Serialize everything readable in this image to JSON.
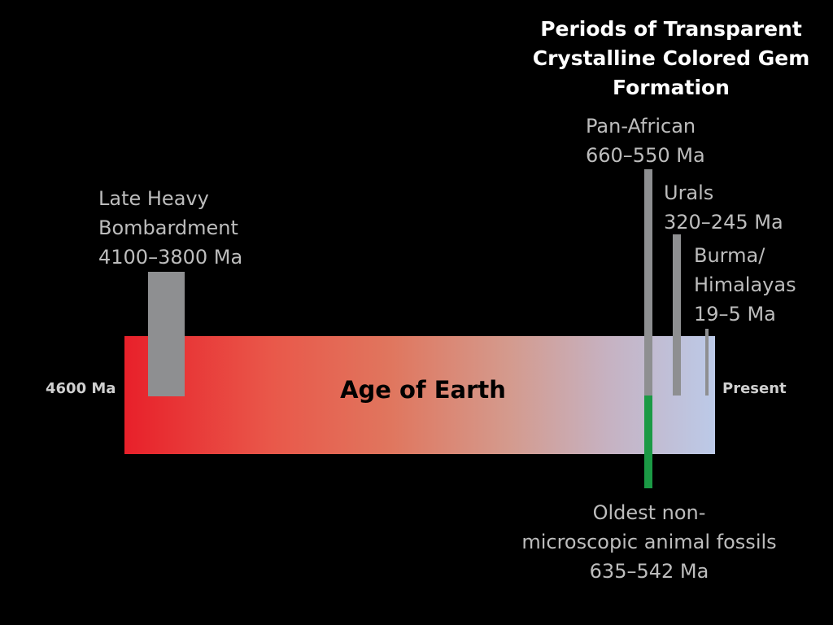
{
  "title": {
    "line1": "Periods of Transparent",
    "line2": "Crystalline Colored Gem",
    "line3": "Formation"
  },
  "timeline": {
    "bar_label": "Age of Earth",
    "start_label": "4600 Ma",
    "end_label": "Present",
    "start_ma": 4600,
    "end_ma": 0
  },
  "events": {
    "late_heavy_bombardment": {
      "line1": "Late Heavy",
      "line2": "Bombardment",
      "range": "4100–3800 Ma",
      "start_ma": 4100,
      "end_ma": 3800
    },
    "pan_african": {
      "line1": "Pan-African",
      "range": "660–550 Ma",
      "start_ma": 660,
      "end_ma": 550
    },
    "urals": {
      "line1": "Urals",
      "range": "320–245 Ma",
      "start_ma": 320,
      "end_ma": 245
    },
    "burma_himalayas": {
      "line1": "Burma/",
      "line2": "Himalayas",
      "range": "19–5 Ma",
      "start_ma": 19,
      "end_ma": 5
    },
    "oldest_fossils": {
      "line1": "Oldest non-",
      "line2": "microscopic animal fossils",
      "range": "635–542 Ma",
      "start_ma": 635,
      "end_ma": 542
    }
  },
  "colors": {
    "background": "#000000",
    "gem_period_bar": "#8e8f91",
    "fossil_bar": "#1b9a45",
    "gradient_start": "#e8202a",
    "gradient_end": "#bccae8"
  }
}
